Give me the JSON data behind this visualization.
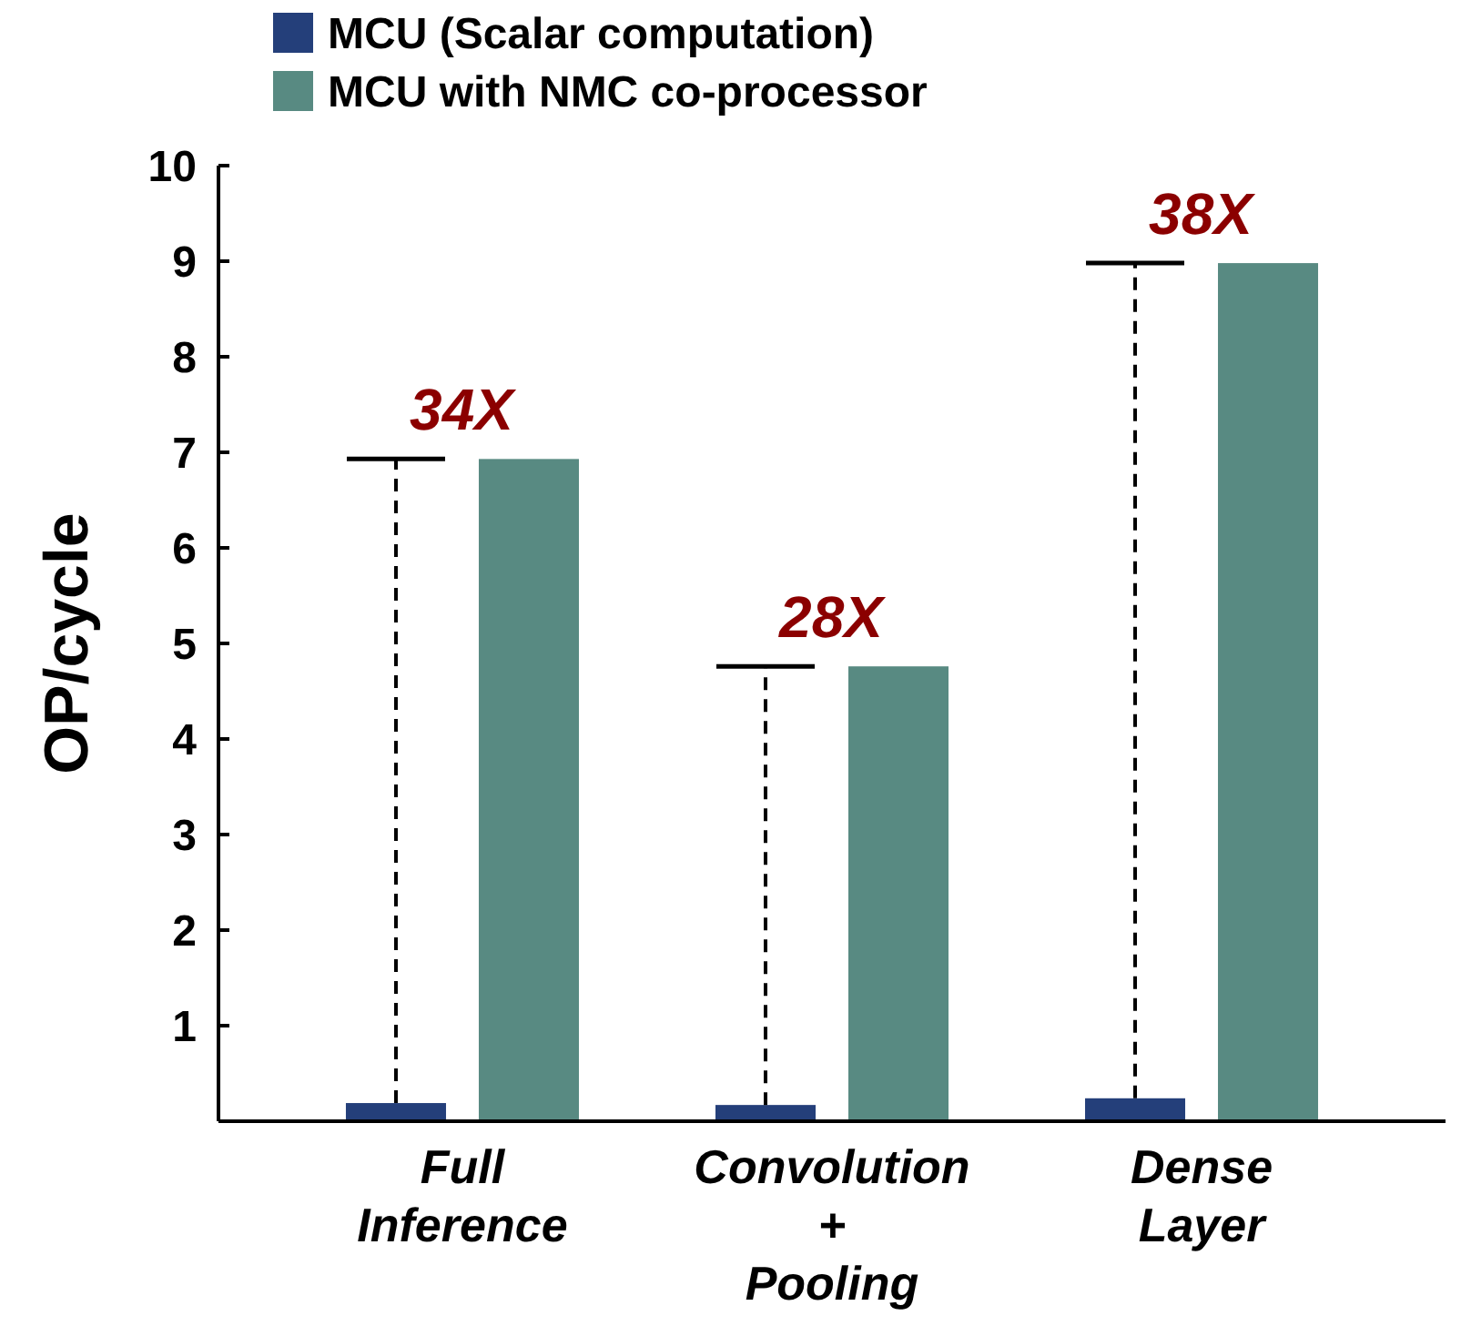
{
  "chart_data": {
    "type": "bar",
    "ylabel": "OP/cycle",
    "categories": [
      "Full\nInference",
      "Convolution\n+\nPooling",
      "Dense\nLayer"
    ],
    "series": [
      {
        "name": "MCU (Scalar computation)",
        "color": "#243f7a",
        "values": [
          0.19,
          0.17,
          0.24
        ],
        "errors": [
          [
            0.19,
            6.93
          ],
          [
            0.17,
            4.76
          ],
          [
            0.24,
            8.98
          ]
        ],
        "line_style": "dashed"
      },
      {
        "name": "MCU with NMC co-processor",
        "color": "#588a82",
        "values": [
          6.93,
          4.76,
          8.98
        ]
      }
    ],
    "ylim": [
      0,
      10
    ],
    "yticks": [
      1,
      2,
      3,
      4,
      5,
      6,
      7,
      8,
      9,
      10
    ],
    "legend": "top left",
    "grid": false,
    "annotations": [
      "34X",
      "28X",
      "38X"
    ]
  }
}
